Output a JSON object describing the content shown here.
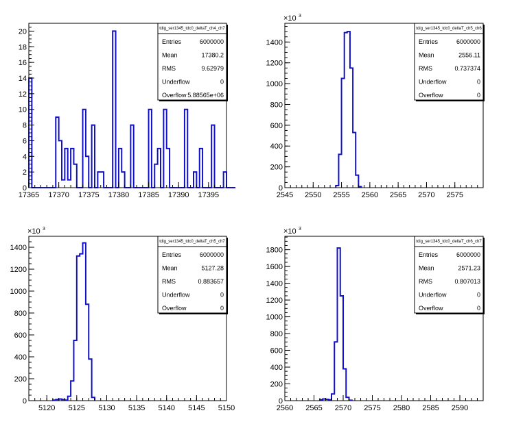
{
  "chart_data": [
    {
      "type": "bar",
      "title": "tdig_ser1345_tdc0_deltaT_ch4_ch7",
      "xlabel": "",
      "ylabel": "",
      "xlim": [
        17365,
        17398
      ],
      "ylim": [
        0,
        21
      ],
      "y_exponent": null,
      "x_ticks": [
        17365,
        17370,
        17375,
        17380,
        17385,
        17390,
        17395
      ],
      "y_ticks": [
        0,
        2,
        4,
        6,
        8,
        10,
        12,
        14,
        16,
        18,
        20
      ],
      "bin_start": 17365,
      "bin_width": 0.5,
      "values": [
        14,
        0,
        0,
        0,
        0,
        0,
        0,
        0,
        0,
        9,
        6,
        1,
        5,
        1,
        5,
        3,
        0,
        0,
        10,
        4,
        0,
        8,
        0,
        2,
        2,
        0,
        0,
        0,
        20,
        0,
        5,
        2,
        0,
        0,
        8,
        0,
        0,
        0,
        0,
        0,
        10,
        0,
        3,
        5,
        0,
        10,
        5,
        0,
        0,
        0,
        0,
        0,
        10,
        0,
        0,
        2,
        0,
        5,
        0,
        0,
        0,
        8,
        0,
        0,
        0,
        2,
        0,
        0,
        0
      ],
      "stats": [
        {
          "label": "Entries",
          "value": "6000000"
        },
        {
          "label": "Mean",
          "value": "17380.2"
        },
        {
          "label": "RMS",
          "value": "9.62979"
        },
        {
          "label": "Underflow",
          "value": "0"
        },
        {
          "label": "Overflow",
          "value": "5.88565e+06"
        }
      ]
    },
    {
      "type": "bar",
      "title": "tdig_ser1345_tdc0_deltaT_ch5_ch6",
      "xlabel": "",
      "ylabel": "",
      "xlim": [
        2545,
        2580
      ],
      "ylim": [
        0,
        1580
      ],
      "y_exponent": "10",
      "y_exponent_power": "3",
      "x_ticks": [
        2545,
        2550,
        2555,
        2560,
        2565,
        2570,
        2575
      ],
      "y_ticks": [
        0,
        200,
        400,
        600,
        800,
        1000,
        1200,
        1400
      ],
      "bin_start": 2554.0,
      "bin_width": 0.5,
      "values": [
        20,
        320,
        1050,
        1490,
        1500,
        1150,
        530,
        120,
        10
      ],
      "stats": [
        {
          "label": "Entries",
          "value": "6000000"
        },
        {
          "label": "Mean",
          "value": "2556.11"
        },
        {
          "label": "RMS",
          "value": "0.737374"
        },
        {
          "label": "Underflow",
          "value": "0"
        },
        {
          "label": "Overflow",
          "value": "0"
        }
      ]
    },
    {
      "type": "bar",
      "title": "tdig_ser1345_tdc0_deltaT_ch5_ch7",
      "xlabel": "",
      "ylabel": "",
      "xlim": [
        5117,
        5150
      ],
      "ylim": [
        0,
        1500
      ],
      "y_exponent": "10",
      "y_exponent_power": "3",
      "x_ticks": [
        5120,
        5125,
        5130,
        5135,
        5140,
        5145,
        5150
      ],
      "y_ticks": [
        0,
        200,
        400,
        600,
        800,
        1000,
        1200,
        1400
      ],
      "bin_start": 5121.0,
      "bin_width": 0.5,
      "values": [
        5,
        10,
        15,
        10,
        5,
        40,
        180,
        550,
        1320,
        1340,
        1440,
        880,
        380,
        30
      ],
      "stats": [
        {
          "label": "Entries",
          "value": "6000000"
        },
        {
          "label": "Mean",
          "value": "5127.28"
        },
        {
          "label": "RMS",
          "value": "0.883657"
        },
        {
          "label": "Underflow",
          "value": "0"
        },
        {
          "label": "Overflow",
          "value": "0"
        }
      ]
    },
    {
      "type": "bar",
      "title": "tdig_ser1345_tdc0_deltaT_ch6_ch7",
      "xlabel": "",
      "ylabel": "",
      "xlim": [
        2560,
        2594
      ],
      "ylim": [
        0,
        1960
      ],
      "y_exponent": "10",
      "y_exponent_power": "3",
      "x_ticks": [
        2560,
        2565,
        2570,
        2575,
        2580,
        2585,
        2590
      ],
      "y_ticks": [
        0,
        200,
        400,
        600,
        800,
        1000,
        1200,
        1400,
        1600,
        1800
      ],
      "bin_start": 2566.0,
      "bin_width": 0.5,
      "values": [
        10,
        20,
        15,
        10,
        80,
        700,
        1820,
        1250,
        380,
        40,
        5
      ],
      "stats": [
        {
          "label": "Entries",
          "value": "6000000"
        },
        {
          "label": "Mean",
          "value": "2571.23"
        },
        {
          "label": "RMS",
          "value": "0.807013"
        },
        {
          "label": "Underflow",
          "value": "0"
        },
        {
          "label": "Overflow",
          "value": "0"
        }
      ]
    }
  ],
  "colors": {
    "histogram": "#1010c8",
    "axis": "#000000",
    "background": "#ffffff"
  }
}
